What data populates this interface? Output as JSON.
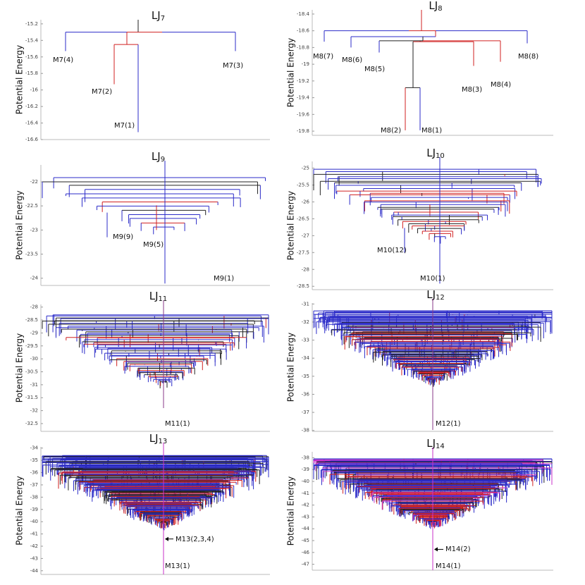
{
  "chart_data": [
    {
      "type": "disconnectivity",
      "title": "LJ",
      "title_subscript": "7",
      "ylabel": "Potential Energy",
      "ylim": [
        -16.6,
        -15.15
      ],
      "yticks": [
        -15.2,
        -15.4,
        -15.6,
        -15.8,
        -16,
        -16.2,
        -16.4,
        -16.6
      ],
      "saddles": [
        -15.3,
        -15.45
      ],
      "minima": [
        {
          "label": "M7(4)",
          "energy": -15.53
        },
        {
          "label": "M7(3)",
          "energy": -15.53
        },
        {
          "label": "M7(2)",
          "energy": -15.93
        },
        {
          "label": "M7(1)",
          "energy": -16.51
        }
      ]
    },
    {
      "type": "disconnectivity",
      "title": "LJ",
      "title_subscript": "8",
      "ylabel": "Potential Energy",
      "ylim": [
        -19.85,
        -18.35
      ],
      "yticks": [
        -18.4,
        -18.6,
        -18.8,
        -19,
        -19.2,
        -19.4,
        -19.6,
        -19.8
      ],
      "saddles": [
        -18.6,
        -18.67,
        -18.72,
        -18.73,
        -19.28
      ],
      "minima": [
        {
          "label": "M8(7)",
          "energy": -18.73
        },
        {
          "label": "M8(6)",
          "energy": -18.8
        },
        {
          "label": "M8(5)",
          "energy": -18.86
        },
        {
          "label": "M8(8)",
          "energy": -18.75
        },
        {
          "label": "M8(3)",
          "energy": -19.02
        },
        {
          "label": "M8(4)",
          "energy": -18.97
        },
        {
          "label": "M8(2)",
          "energy": -19.79
        },
        {
          "label": "M8(1)",
          "energy": -19.79
        }
      ]
    },
    {
      "type": "disconnectivity",
      "title": "LJ",
      "title_subscript": "9",
      "ylabel": "Potential Energy",
      "ylim": [
        -24.15,
        -21.65
      ],
      "yticks": [
        -22,
        -22.5,
        -23,
        -23.5,
        -24
      ],
      "minima": [
        {
          "label": "M9(9)",
          "energy": -23.15
        },
        {
          "label": "M9(5)",
          "energy": -23.0
        },
        {
          "label": "M9(1)",
          "energy": -24.11
        }
      ]
    },
    {
      "type": "disconnectivity",
      "title": "LJ",
      "title_subscript": "10",
      "ylabel": "Potential Energy",
      "ylim": [
        -28.6,
        -24.8
      ],
      "yticks": [
        -25,
        -25.5,
        -26,
        -26.5,
        -27,
        -27.5,
        -28,
        -28.5
      ],
      "minima": [
        {
          "label": "M10(12)",
          "energy": -27.5
        },
        {
          "label": "M10(1)",
          "energy": -28.42
        }
      ]
    },
    {
      "type": "disconnectivity",
      "title": "LJ",
      "title_subscript": "11",
      "ylabel": "Potential Energy",
      "ylim": [
        -32.8,
        -27.9
      ],
      "yticks": [
        -28,
        -28.5,
        -29,
        -29.5,
        -30,
        -30.5,
        -31,
        -31.5,
        -32,
        -32.5
      ],
      "minima": [
        {
          "label": "M11(1)",
          "energy": -31.9
        }
      ]
    },
    {
      "type": "disconnectivity",
      "title": "LJ",
      "title_subscript": "12",
      "ylabel": "Potential Energy",
      "ylim": [
        -38.05,
        -30.95
      ],
      "yticks": [
        -31,
        -32,
        -33,
        -34,
        -35,
        -36,
        -37,
        -38
      ],
      "minima": [
        {
          "label": "M12(1)",
          "energy": -37.97
        }
      ]
    },
    {
      "type": "disconnectivity",
      "title": "LJ",
      "title_subscript": "13",
      "ylabel": "Potential Energy",
      "ylim": [
        -44.3,
        -33.9
      ],
      "yticks": [
        -34,
        -35,
        -36,
        -37,
        -38,
        -39,
        -40,
        -41,
        -42,
        -43,
        -44
      ],
      "minima": [
        {
          "label": "M13(2,3,4)",
          "energy": -41.41,
          "arrow": true
        },
        {
          "label": "M13(1)",
          "energy": -44.3
        }
      ]
    },
    {
      "type": "disconnectivity",
      "title": "LJ",
      "title_subscript": "14",
      "ylabel": "Potential Energy",
      "ylim": [
        -47.5,
        -37.5
      ],
      "yticks": [
        -38,
        -39,
        -40,
        -41,
        -42,
        -43,
        -44,
        -45,
        -46,
        -47
      ],
      "minima": [
        {
          "label": "M14(2)",
          "energy": -45.74,
          "arrow": true
        },
        {
          "label": "M14(1)",
          "energy": -47.5
        }
      ]
    }
  ]
}
